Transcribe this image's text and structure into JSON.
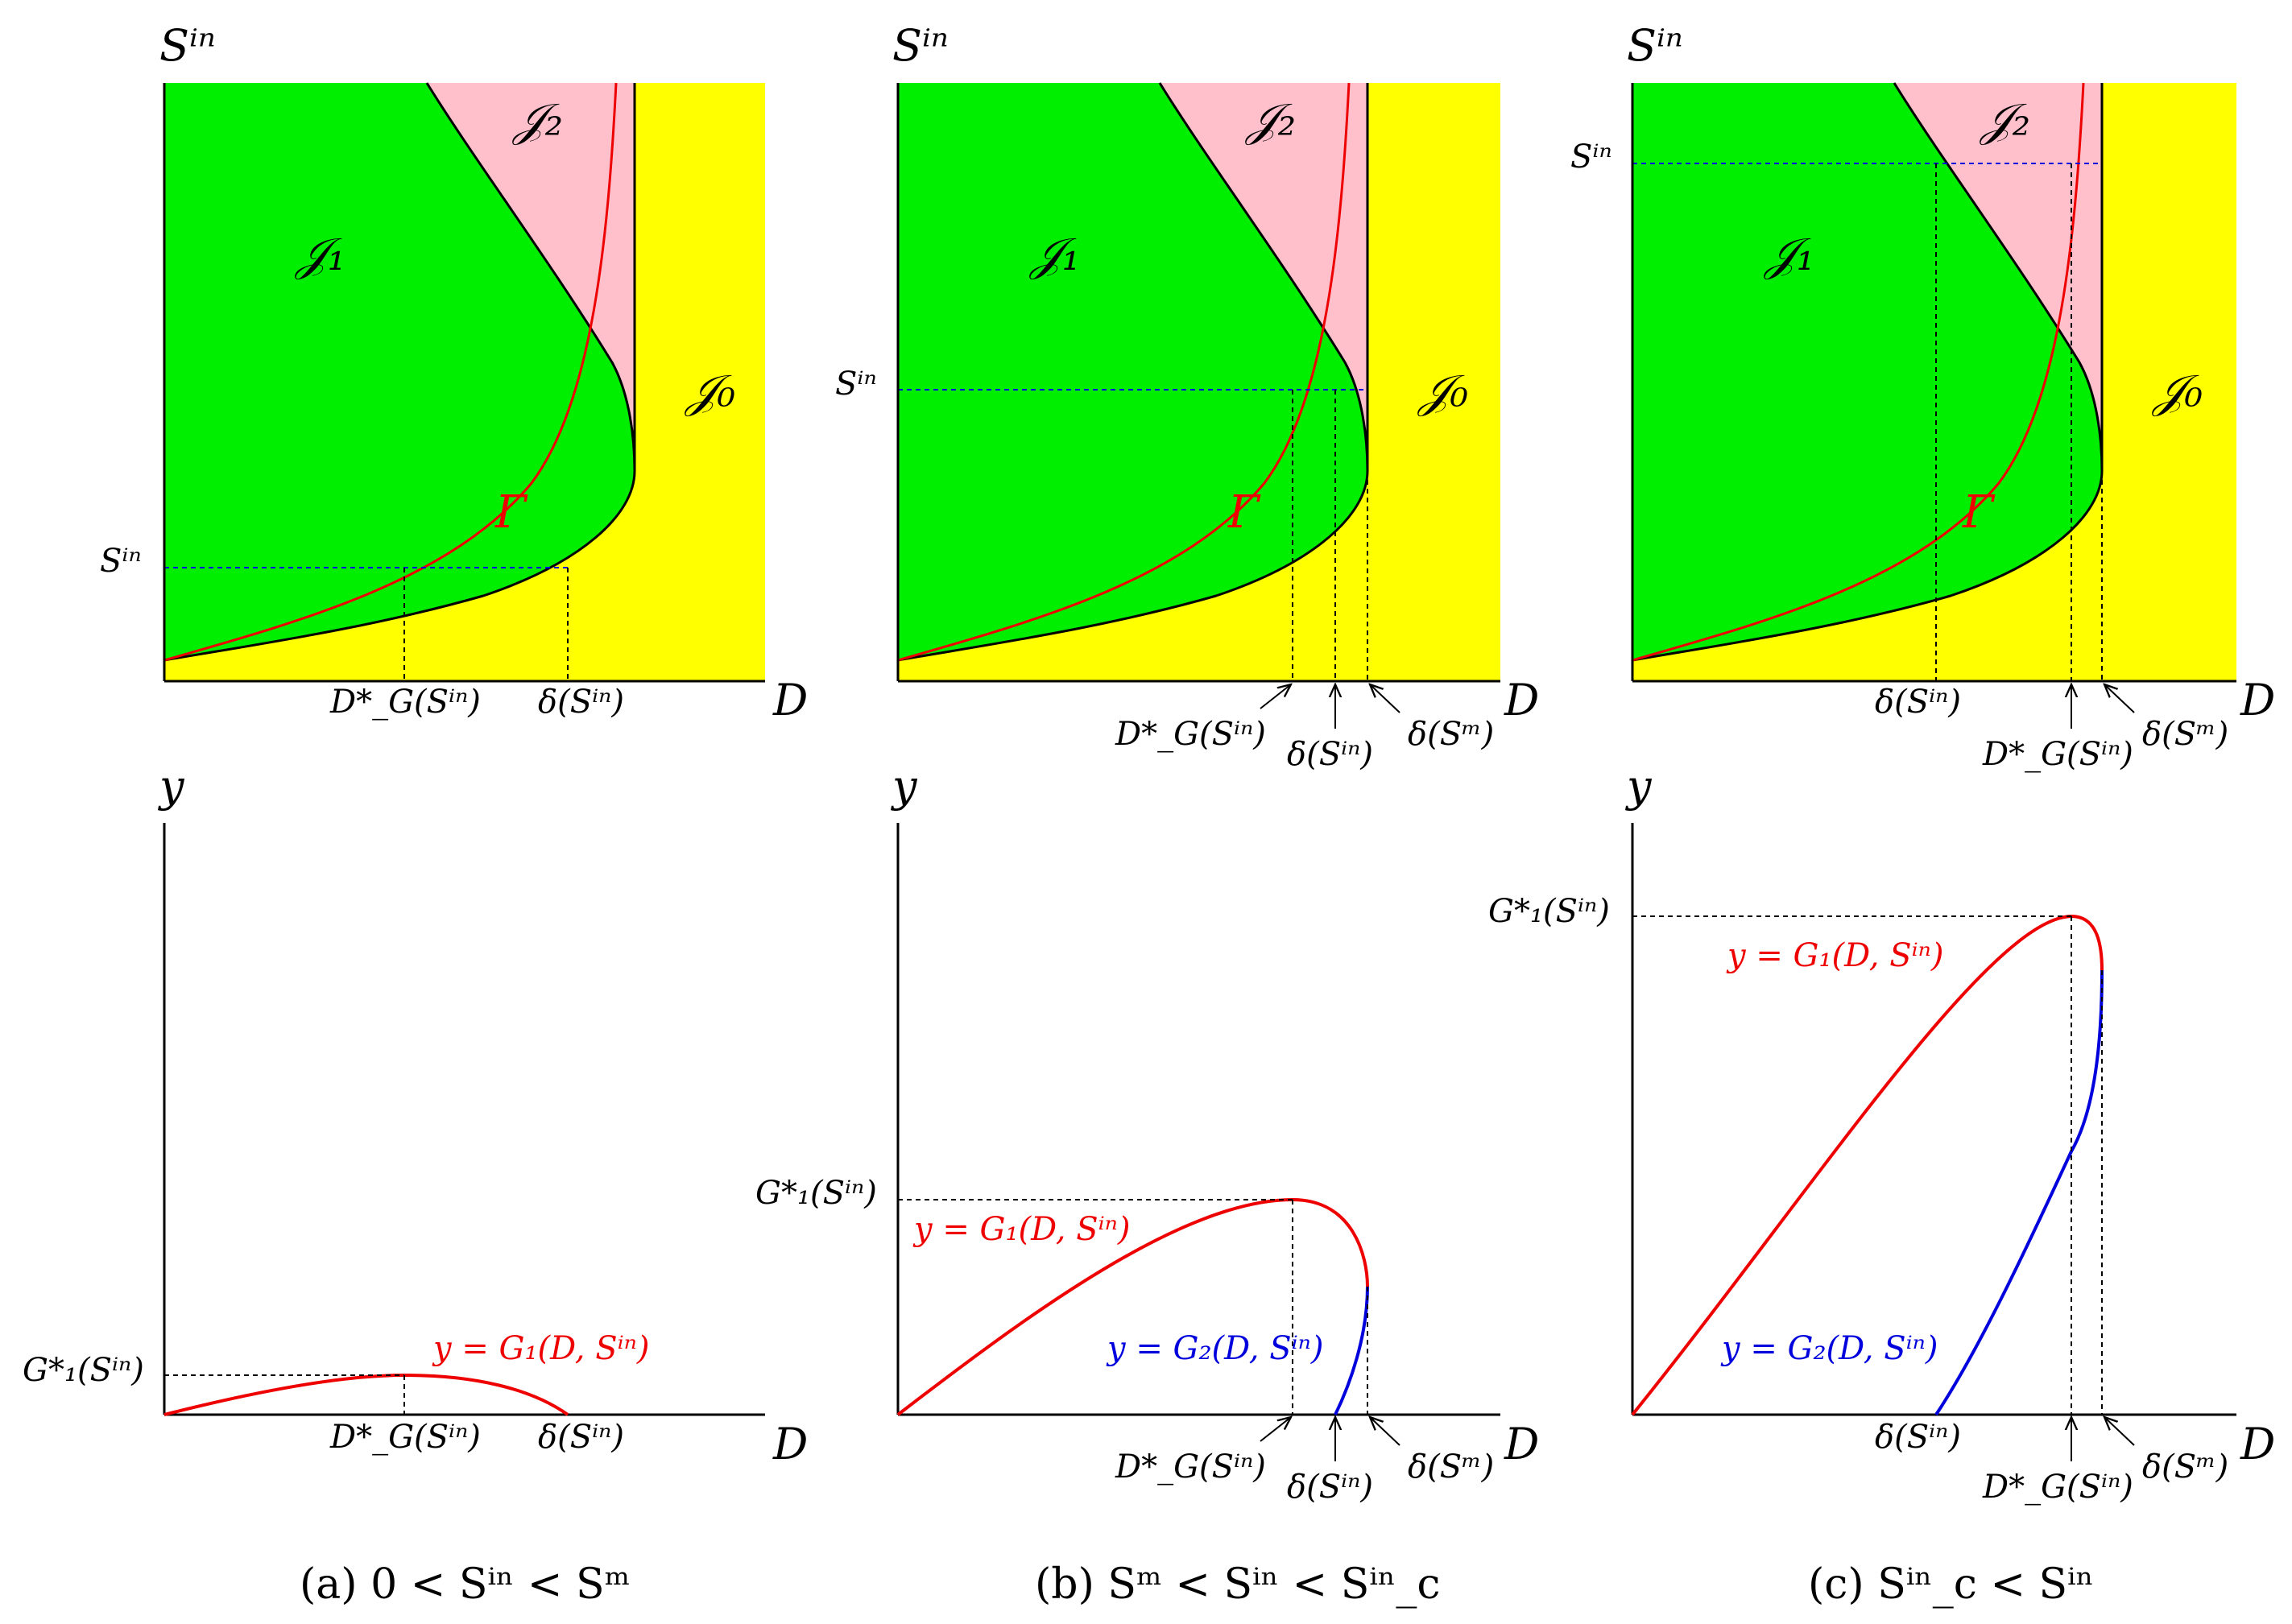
{
  "colors": {
    "J0": "#ffff00",
    "J1": "#00ee00",
    "J2": "#ffc0cb",
    "gamma": "#ee0000",
    "G1": "#ee0000",
    "G2": "#0000dd",
    "guide": "#0000dd"
  },
  "regions": {
    "J0": "𝒥₀",
    "J1": "𝒥₁",
    "J2": "𝒥₂"
  },
  "gamma": "Γ",
  "axes": {
    "top_x": "D",
    "top_y": "Sⁱⁿ",
    "bottom_x": "D",
    "bottom_y": "y"
  },
  "annotations": {
    "Sin": "Sⁱⁿ",
    "DG": "D*_G(Sⁱⁿ)",
    "delta_Sin": "δ(Sⁱⁿ)",
    "delta_Sm": "δ(Sᵐ)",
    "G1star": "G*₁(Sⁱⁿ)",
    "curve1": "y = G₁(D, Sⁱⁿ)",
    "curve2": "y = G₂(D, Sⁱⁿ)"
  },
  "captions": {
    "a": "(a) 0 < Sⁱⁿ < Sᵐ",
    "b": "(b) Sᵐ < Sⁱⁿ < Sⁱⁿ_c",
    "c": "(c) Sⁱⁿ_c < Sⁱⁿ"
  }
}
